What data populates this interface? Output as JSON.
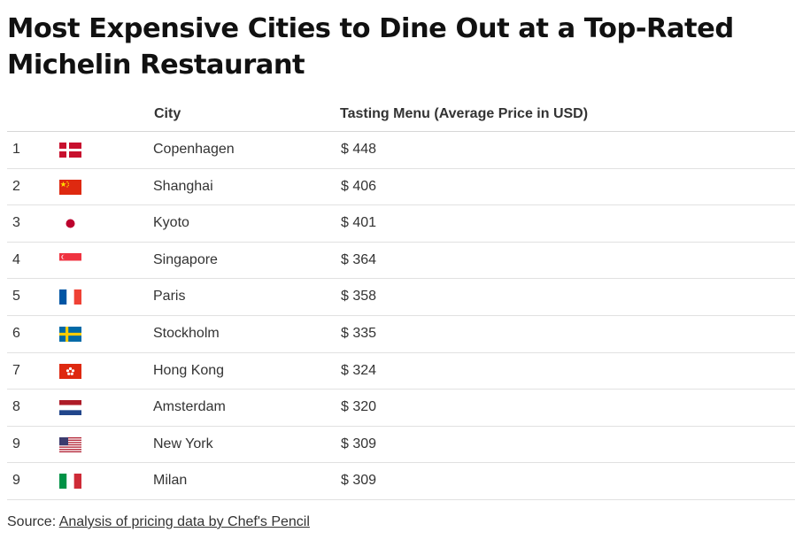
{
  "title": "Most Expensive Cities to Dine Out at a Top-Rated Michelin Restaurant",
  "columns": {
    "rank": "",
    "flag": "",
    "city": "City",
    "price": "Tasting Menu (Average Price in USD)"
  },
  "source": {
    "label": "Source:",
    "link_text": "Analysis of pricing data by Chef's Pencil"
  },
  "chart_data": {
    "type": "table",
    "title": "Most Expensive Cities to Dine Out at a Top-Rated Michelin Restaurant",
    "columns": [
      "",
      "",
      "City",
      "Tasting Menu (Average Price in USD)"
    ],
    "rows": [
      {
        "rank": "1",
        "flag": "denmark-flag-icon",
        "city": "Copenhagen",
        "price": "$ 448",
        "value": 448
      },
      {
        "rank": "2",
        "flag": "china-flag-icon",
        "city": "Shanghai",
        "price": "$ 406",
        "value": 406
      },
      {
        "rank": "3",
        "flag": "japan-flag-icon",
        "city": "Kyoto",
        "price": "$ 401",
        "value": 401
      },
      {
        "rank": "4",
        "flag": "singapore-flag-icon",
        "city": "Singapore",
        "price": "$ 364",
        "value": 364
      },
      {
        "rank": "5",
        "flag": "france-flag-icon",
        "city": "Paris",
        "price": "$ 358",
        "value": 358
      },
      {
        "rank": "6",
        "flag": "sweden-flag-icon",
        "city": "Stockholm",
        "price": "$ 335",
        "value": 335
      },
      {
        "rank": "7",
        "flag": "hong-kong-flag-icon",
        "city": "Hong Kong",
        "price": "$ 324",
        "value": 324
      },
      {
        "rank": "8",
        "flag": "netherlands-flag-icon",
        "city": "Amsterdam",
        "price": "$ 320",
        "value": 320
      },
      {
        "rank": "9",
        "flag": "usa-flag-icon",
        "city": "New York",
        "price": "$ 309",
        "value": 309
      },
      {
        "rank": "9",
        "flag": "italy-flag-icon",
        "city": "Milan",
        "price": "$ 309",
        "value": 309
      }
    ]
  }
}
